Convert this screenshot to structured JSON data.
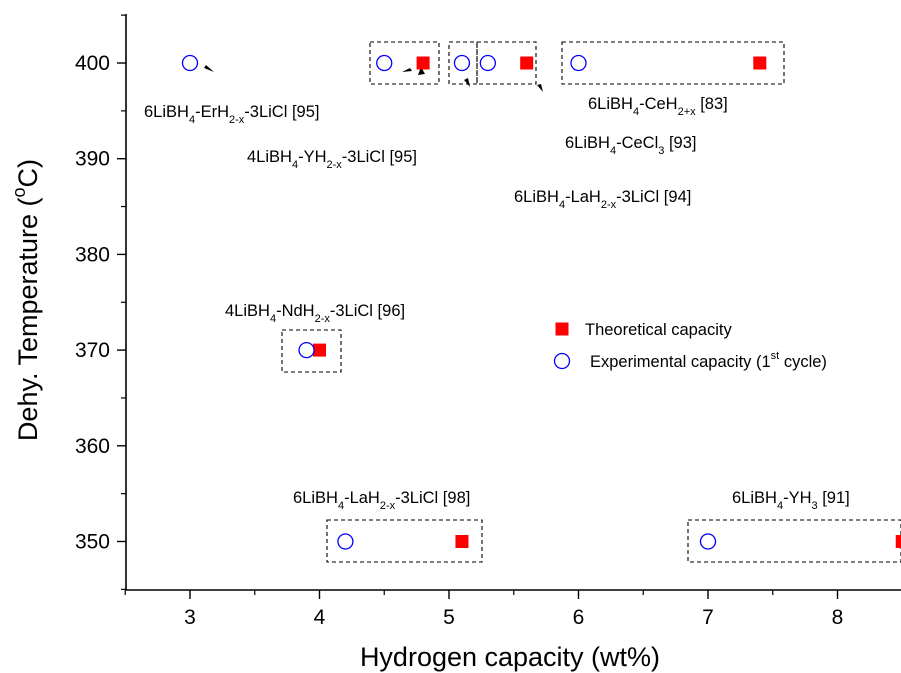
{
  "chart_data": {
    "type": "scatter",
    "xlabel": "Hydrogen capacity (wt%)",
    "ylabel": {
      "prefix": "Dehy. Temperature (",
      "sup": "o",
      "suffix": "C)"
    },
    "xlim": [
      2.5,
      8.5
    ],
    "ylim": [
      345,
      405
    ],
    "x_ticks": [
      3,
      4,
      5,
      6,
      7,
      8
    ],
    "y_ticks": [
      350,
      360,
      370,
      380,
      390,
      400
    ],
    "x_tick_labels": [
      "3",
      "4",
      "5",
      "6",
      "7",
      "8"
    ],
    "y_tick_labels": [
      "350",
      "360",
      "370",
      "380",
      "390",
      "400"
    ],
    "series": [
      {
        "name": "Theoretical capacity",
        "marker": "filled-square",
        "color": "#ff0000",
        "points": [
          {
            "x": 4.8,
            "y": 400
          },
          {
            "x": 5.6,
            "y": 400
          },
          {
            "x": 7.4,
            "y": 400
          },
          {
            "x": 4.0,
            "y": 370
          },
          {
            "x": 5.1,
            "y": 350
          },
          {
            "x": 8.5,
            "y": 350
          }
        ]
      },
      {
        "name": "Experimental capacity (1st cycle)",
        "marker": "open-circle",
        "color": "#0000ff",
        "points": [
          {
            "x": 3.0,
            "y": 400
          },
          {
            "x": 4.5,
            "y": 400
          },
          {
            "x": 5.1,
            "y": 400
          },
          {
            "x": 5.3,
            "y": 400
          },
          {
            "x": 6.0,
            "y": 400
          },
          {
            "x": 3.9,
            "y": 370
          },
          {
            "x": 4.2,
            "y": 350
          },
          {
            "x": 7.0,
            "y": 350
          }
        ]
      }
    ],
    "legend": {
      "placement": "center-right",
      "items": [
        {
          "parts": [
            "Theoretical capacity"
          ]
        },
        {
          "parts": [
            "Experimental capacity (1",
            "st",
            " cycle)"
          ]
        }
      ]
    },
    "annotations": [
      {
        "id": "erh",
        "parts": [
          "6LiBH",
          "4",
          "-ErH",
          "2-x",
          "-3LiCl [95]"
        ]
      },
      {
        "id": "yh2",
        "parts": [
          "4LiBH",
          "4",
          "-YH",
          "2-x",
          "-3LiCl [95]"
        ]
      },
      {
        "id": "ceh",
        "parts": [
          "6LiBH",
          "4",
          "-CeH",
          "2+x",
          " [83]"
        ]
      },
      {
        "id": "cecl",
        "parts": [
          "6LiBH",
          "4",
          "-CeCl",
          "3",
          " [93]"
        ]
      },
      {
        "id": "lah94",
        "parts": [
          "6LiBH",
          "4",
          "-LaH",
          "2-x",
          "-3LiCl [94]"
        ]
      },
      {
        "id": "ndh",
        "parts": [
          "4LiBH",
          "4",
          "-NdH",
          "2-x",
          "-3LiCl [96]"
        ]
      },
      {
        "id": "lah98",
        "parts": [
          "6LiBH",
          "4",
          "-LaH",
          "2-x",
          "-3LiCl [98]"
        ]
      },
      {
        "id": "yh3",
        "parts": [
          "6LiBH",
          "4",
          "-YH",
          "3",
          " [91]"
        ]
      }
    ],
    "grid": false
  }
}
